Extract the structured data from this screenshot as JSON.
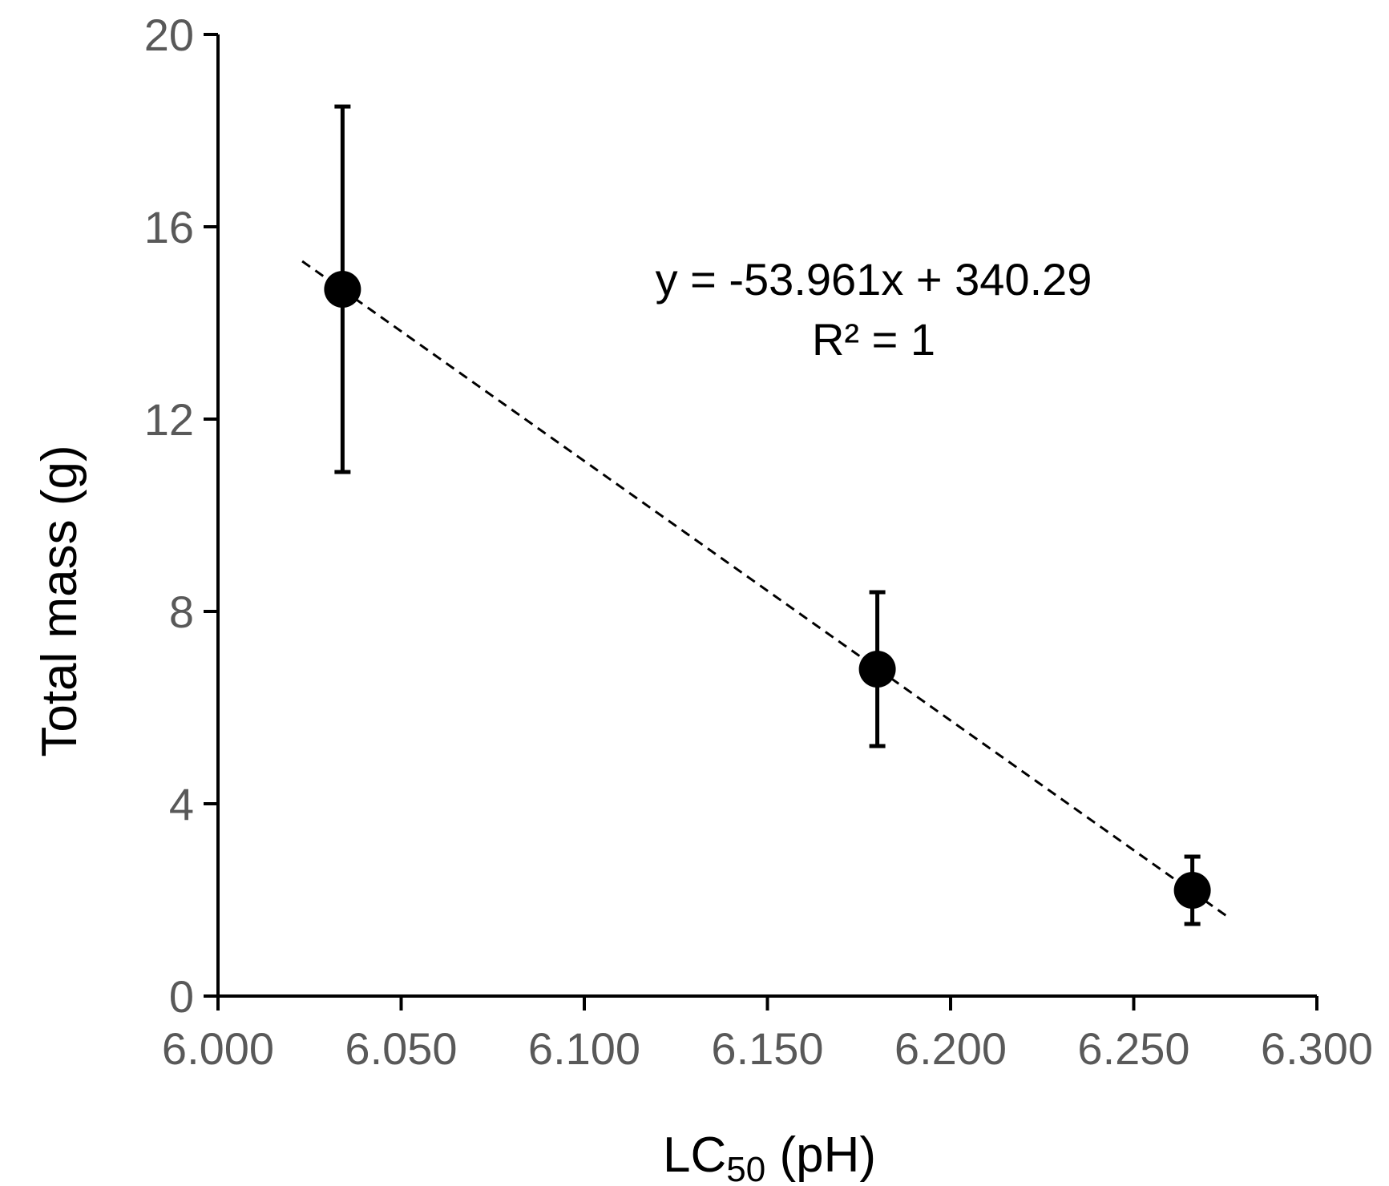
{
  "chart_data": {
    "type": "scatter",
    "title": "",
    "xlabel": "LC50 (pH)",
    "xlabel_main": "LC",
    "xlabel_sub": "50",
    "xlabel_rest": " (pH)",
    "ylabel": "Total mass (g)",
    "xlim": [
      6.0,
      6.3
    ],
    "ylim": [
      0,
      20
    ],
    "x_ticks": [
      "6.000",
      "6.050",
      "6.100",
      "6.150",
      "6.200",
      "6.250",
      "6.300"
    ],
    "y_ticks": [
      "0",
      "4",
      "8",
      "12",
      "16",
      "20"
    ],
    "grid": false,
    "legend": "none",
    "series": [
      {
        "name": "Total mass",
        "points": [
          {
            "x": 6.034,
            "y": 14.7,
            "err_low": 10.9,
            "err_high": 18.5
          },
          {
            "x": 6.18,
            "y": 6.8,
            "err_low": 5.2,
            "err_high": 8.4
          },
          {
            "x": 6.266,
            "y": 2.2,
            "err_low": 1.5,
            "err_high": 2.9
          }
        ]
      }
    ],
    "trendline": {
      "type": "linear",
      "slope": -53.961,
      "intercept": 340.29,
      "x_range": [
        6.023,
        6.276
      ],
      "style": "dashed"
    },
    "annotations": {
      "equation": "y = -53.961x + 340.29",
      "r_squared": "R² = 1"
    },
    "colors": {
      "marker": "#000000",
      "axis": "#000000",
      "tick_label": "#595959"
    }
  }
}
